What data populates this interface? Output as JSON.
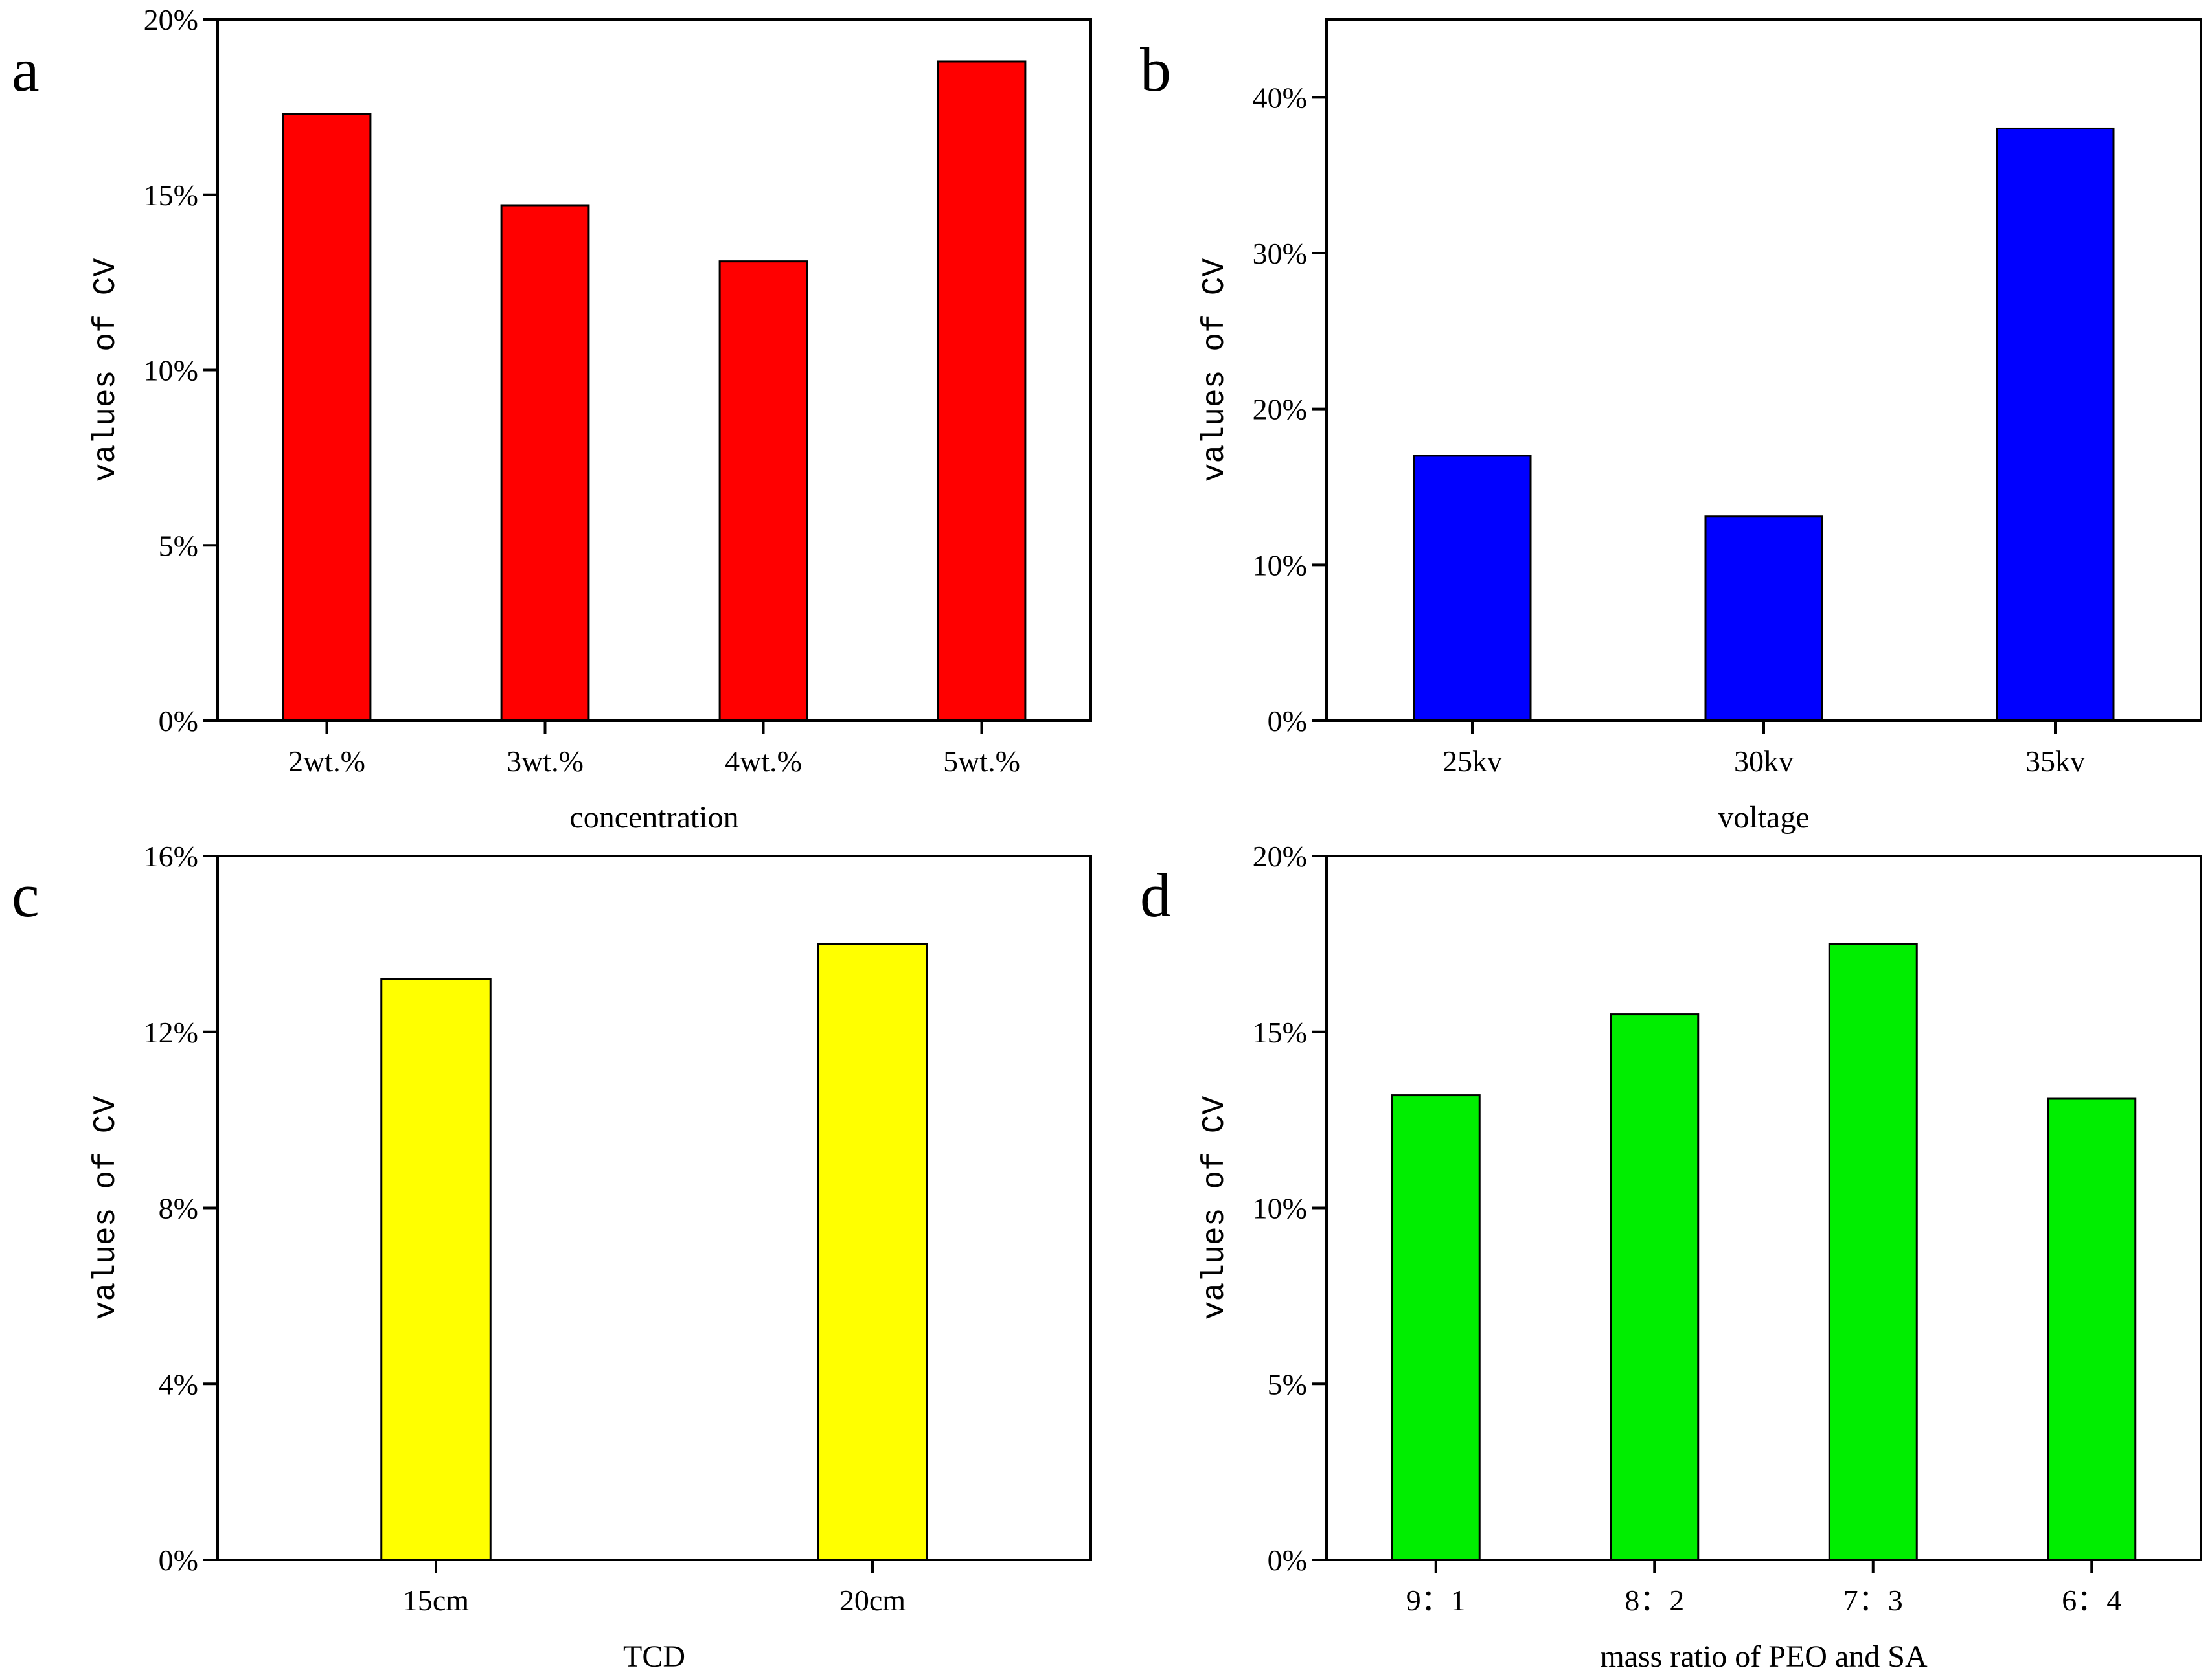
{
  "chart_data": [
    {
      "panel": "a",
      "type": "bar",
      "categories": [
        "2wt.%",
        "3wt.%",
        "4wt.%",
        "5wt.%"
      ],
      "values": [
        17.3,
        14.7,
        13.1,
        18.8
      ],
      "xlabel": "concentration",
      "ylabel": "values of CV",
      "ylim": [
        0,
        20
      ],
      "yticks": [
        0,
        5,
        10,
        15,
        20
      ],
      "ytick_labels": [
        "0%",
        "5%",
        "10%",
        "15%",
        "20%"
      ],
      "color": "#ff0000"
    },
    {
      "panel": "b",
      "type": "bar",
      "categories": [
        "25kv",
        "30kv",
        "35kv"
      ],
      "values": [
        17.0,
        13.1,
        38.0
      ],
      "xlabel": "voltage",
      "ylabel": "values of CV",
      "ylim": [
        0,
        45
      ],
      "yticks": [
        0,
        10,
        20,
        30,
        40
      ],
      "ytick_labels": [
        "0%",
        "10%",
        "20%",
        "30%",
        "40%"
      ],
      "color": "#0000ff"
    },
    {
      "panel": "c",
      "type": "bar",
      "categories": [
        "15cm",
        "20cm"
      ],
      "values": [
        13.2,
        14.0
      ],
      "xlabel": "TCD",
      "ylabel": "values of CV",
      "ylim": [
        0,
        16
      ],
      "yticks": [
        0,
        4,
        8,
        12,
        16
      ],
      "ytick_labels": [
        "0%",
        "4%",
        "8%",
        "12%",
        "16%"
      ],
      "color": "#ffff00"
    },
    {
      "panel": "d",
      "type": "bar",
      "categories": [
        "9：1",
        "8：2",
        "7：3",
        "6：4"
      ],
      "values": [
        13.2,
        15.5,
        17.5,
        13.1
      ],
      "xlabel": "mass ratio of PEO and SA",
      "ylabel": "values of CV",
      "ylim": [
        0,
        20
      ],
      "yticks": [
        0,
        5,
        10,
        15,
        20
      ],
      "ytick_labels": [
        "0%",
        "5%",
        "10%",
        "15%",
        "20%"
      ],
      "color": "#00ee00"
    }
  ]
}
